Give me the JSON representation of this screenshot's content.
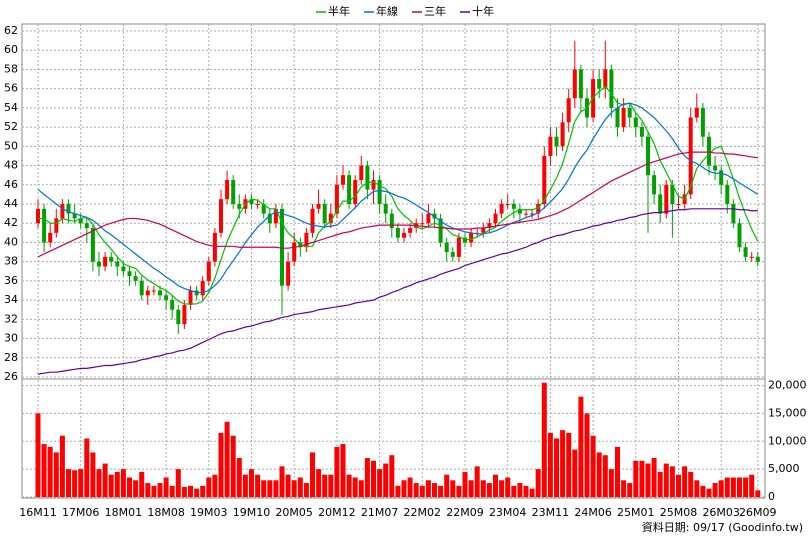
{
  "chart_data": [
    {
      "type": "candlestick",
      "categories": [
        "16M11",
        null,
        null,
        null,
        null,
        null,
        null,
        "17M06",
        null,
        null,
        null,
        null,
        null,
        null,
        "18M01",
        null,
        null,
        null,
        null,
        null,
        null,
        "18M08",
        null,
        null,
        null,
        null,
        null,
        null,
        "19M03",
        null,
        null,
        null,
        null,
        null,
        null,
        "19M10",
        null,
        null,
        null,
        null,
        null,
        null,
        "20M05",
        null,
        null,
        null,
        null,
        null,
        null,
        "20M12",
        null,
        null,
        null,
        null,
        null,
        null,
        "21M07",
        null,
        null,
        null,
        null,
        null,
        null,
        "22M02",
        null,
        null,
        null,
        null,
        null,
        null,
        "22M09",
        null,
        null,
        null,
        null,
        null,
        null,
        "23M04",
        null,
        null,
        null,
        null,
        null,
        null,
        "23M11",
        null,
        null,
        null,
        null,
        null,
        null,
        "24M06",
        null,
        null,
        null,
        null,
        null,
        null,
        "25M01",
        null,
        null,
        null,
        null,
        null,
        null,
        "25M08",
        null,
        null,
        null,
        null,
        null,
        null,
        "26M03",
        null,
        null,
        null,
        null,
        null,
        "26M09"
      ],
      "open": [
        42,
        43.5,
        40,
        41,
        42.5,
        44,
        43,
        42.5,
        42,
        41.5,
        38,
        37.5,
        38.5,
        38,
        37.5,
        37,
        36.5,
        36,
        34.5,
        35,
        35,
        34.5,
        34,
        33,
        31.5,
        33.5,
        35,
        34.5,
        36,
        38,
        41,
        44.5,
        46.5,
        44,
        43.5,
        44.5,
        44,
        44,
        43,
        42,
        43.5,
        35.5,
        38,
        40,
        39.5,
        41,
        43.5,
        44,
        42,
        43,
        46,
        47,
        44,
        46.5,
        48,
        45.5,
        46.5,
        44,
        43,
        41.5,
        40.5,
        41,
        41.5,
        42,
        42,
        43,
        42.5,
        40,
        39,
        38.5,
        40.5,
        40,
        41,
        41,
        41.5,
        42,
        43,
        44,
        44,
        43.5,
        43,
        43,
        43,
        44,
        49,
        51,
        50,
        52.5,
        55,
        58,
        55,
        53,
        57,
        56,
        58,
        54,
        52,
        54,
        53,
        52,
        51,
        47,
        45,
        43,
        46,
        44,
        44,
        45,
        53,
        54,
        51,
        48,
        47.5,
        46,
        44,
        42,
        39.5,
        38.5,
        38.5
      ],
      "high": [
        44.5,
        44,
        42,
        43.5,
        44.5,
        44.5,
        44,
        43,
        42.5,
        42,
        39,
        39,
        39,
        38.5,
        38,
        37.5,
        37,
        36.5,
        35.5,
        35.5,
        35.5,
        35,
        34.5,
        33.5,
        34,
        35.5,
        35.5,
        36.5,
        38.5,
        41.5,
        45.5,
        47.5,
        47,
        45,
        45,
        45,
        44.5,
        44.5,
        43.5,
        44,
        44,
        39,
        41,
        40.5,
        41.5,
        44,
        45.5,
        44.5,
        44,
        47,
        48,
        47.5,
        47,
        49,
        48.5,
        47.5,
        47,
        45,
        43.5,
        42,
        41.5,
        42,
        42.5,
        43,
        44,
        43.5,
        43,
        40.5,
        39.5,
        41,
        41,
        41.5,
        41.5,
        42,
        42.5,
        43.5,
        44.5,
        45,
        44.5,
        44,
        43.5,
        43.5,
        44.5,
        50,
        52,
        52,
        53.5,
        56,
        61,
        58.5,
        56,
        58,
        58,
        61,
        58.5,
        55,
        55,
        54.5,
        53.5,
        52.5,
        51.5,
        47.5,
        46,
        46.5,
        46.5,
        45,
        46,
        54,
        55.5,
        54.5,
        51.5,
        49,
        48,
        46.5,
        44.5,
        42.5,
        40,
        39,
        39
      ],
      "low": [
        41.5,
        39,
        39.5,
        40.5,
        42,
        42,
        42,
        41.5,
        40,
        37,
        36.5,
        37,
        37.5,
        36.5,
        36.5,
        35.5,
        35.5,
        34,
        33.5,
        34.5,
        34,
        33,
        32,
        30.5,
        31,
        33,
        34,
        34,
        35.5,
        37.5,
        40.5,
        44,
        43.5,
        42.5,
        43,
        43.5,
        43.5,
        42.5,
        41,
        41.5,
        32.5,
        35,
        37.5,
        38.5,
        39,
        40.5,
        43,
        41.5,
        41.5,
        42.5,
        45.5,
        43.5,
        43.5,
        46,
        44.5,
        44,
        43,
        42,
        40.5,
        40,
        40,
        40.5,
        41,
        41.5,
        41.5,
        41.5,
        39.5,
        38,
        38,
        38,
        39.5,
        39.5,
        40.5,
        40.5,
        41,
        41.5,
        42.5,
        43.5,
        42.5,
        42,
        42.5,
        42.5,
        42.5,
        43.5,
        48,
        49,
        49.5,
        51.5,
        54,
        53.5,
        52,
        52.5,
        55,
        55,
        53,
        51,
        51.5,
        52,
        51,
        50,
        41,
        44,
        42,
        42.5,
        40.5,
        43.5,
        43.5,
        44.5,
        52.5,
        50,
        47,
        46.5,
        45,
        43,
        41.5,
        39,
        38,
        38,
        37.5
      ],
      "close": [
        43.5,
        40,
        41,
        42.5,
        44,
        43,
        42.5,
        42,
        41.5,
        38,
        37.5,
        38.5,
        38,
        37.5,
        37,
        36.5,
        36,
        34.5,
        35,
        35,
        34.5,
        34,
        33,
        31.5,
        33.5,
        35,
        34.5,
        36,
        38,
        41,
        44.5,
        46.5,
        44,
        43.5,
        44.5,
        44,
        44,
        43,
        42,
        43.5,
        35.5,
        38,
        40,
        39.5,
        41,
        43.5,
        44,
        42,
        43,
        46,
        47,
        44,
        46.5,
        48,
        45.5,
        46.5,
        44,
        43,
        41.5,
        40.5,
        41,
        41.5,
        42,
        42,
        43,
        42.5,
        40,
        39,
        38.5,
        40.5,
        40,
        41,
        41,
        41.5,
        42,
        43,
        44,
        44,
        43.5,
        43,
        43,
        43,
        44,
        49,
        51,
        50,
        52.5,
        55,
        58,
        55,
        53,
        57,
        56,
        58,
        54,
        52,
        54,
        53,
        52,
        51,
        47,
        45,
        43,
        46,
        44,
        44,
        45,
        53,
        54,
        51,
        48,
        47.5,
        46,
        44,
        42,
        39.5,
        38.5,
        38.5,
        38
      ],
      "up_color": "#ff0000",
      "down_color": "#00a000",
      "series": [
        {
          "name": "半年",
          "color": "#00c000",
          "values": [
            42.5,
            42.5,
            42,
            42,
            42.5,
            42.3,
            42.2,
            42.5,
            42.6,
            41.9,
            40.8,
            40,
            39.3,
            38.5,
            37.8,
            37.5,
            37.3,
            36.6,
            36.1,
            35.7,
            35.3,
            35,
            34.5,
            33.9,
            33.6,
            33.6,
            33.6,
            33.9,
            34.8,
            36.3,
            38.2,
            40.1,
            41.5,
            42.9,
            44,
            44.5,
            44.4,
            43.9,
            43.5,
            43.5,
            42,
            41,
            40.4,
            39.7,
            39.6,
            39.6,
            41,
            41.7,
            42.2,
            43.3,
            44.3,
            44.3,
            44.8,
            45.8,
            46.2,
            46.3,
            45.9,
            45.6,
            44.8,
            43.5,
            42.8,
            42.3,
            41.6,
            41.4,
            41.7,
            42,
            41.8,
            41.4,
            40.8,
            40.6,
            40.3,
            40.3,
            40.6,
            40.9,
            41.3,
            41.6,
            42.2,
            42.7,
            43.1,
            43.4,
            43.4,
            43.4,
            43.6,
            44.4,
            45.5,
            46.7,
            48.2,
            50.3,
            52.6,
            53.6,
            54,
            55.1,
            55.7,
            56.2,
            55.5,
            54.5,
            54.3,
            54.5,
            53.5,
            52.7,
            51.5,
            50.3,
            48.5,
            47.3,
            46,
            44.8,
            44.5,
            45.8,
            47.7,
            48.5,
            49.2,
            49.8,
            50,
            48.4,
            46.6,
            44.6,
            42.9,
            41.4,
            40.1
          ]
        },
        {
          "name": "年線",
          "color": "#0070e0",
          "values": [
            45.5,
            45,
            44.5,
            44,
            43.5,
            43.2,
            43,
            42.8,
            42.6,
            42.3,
            41.8,
            41.2,
            40.8,
            40.3,
            39.8,
            39.3,
            38.8,
            38.3,
            37.8,
            37.3,
            36.9,
            36.4,
            36,
            35.5,
            35.2,
            35,
            34.8,
            34.8,
            35,
            35.5,
            36.2,
            37.2,
            38.1,
            39,
            40,
            40.8,
            41.6,
            42.2,
            42.8,
            43.2,
            43,
            42.8,
            42.6,
            42.3,
            42,
            41.8,
            41.7,
            41.6,
            41.7,
            41.8,
            42.4,
            43,
            43.6,
            44.3,
            44.8,
            45.3,
            45.4,
            45.3,
            45.1,
            44.8,
            44.6,
            44.3,
            43.9,
            43.5,
            43.1,
            42.7,
            42.2,
            41.8,
            41.5,
            41.3,
            41.1,
            41,
            40.9,
            40.9,
            41,
            41.2,
            41.5,
            41.8,
            42.1,
            42.3,
            42.6,
            42.8,
            43.1,
            43.6,
            44.2,
            44.9,
            45.6,
            46.6,
            47.8,
            48.8,
            49.6,
            50.8,
            51.8,
            52.8,
            53.5,
            54,
            54.4,
            54.5,
            54.3,
            54,
            53.5,
            53,
            52.3,
            51.6,
            50.8,
            49.8,
            49,
            48.5,
            48.2,
            47.8,
            47.4,
            47.2,
            47.2,
            47,
            46.6,
            46.2,
            45.8,
            45.4,
            45
          ]
        },
        {
          "name": "三年",
          "color": "#d00050",
          "values": [
            38.5,
            38.8,
            39.1,
            39.4,
            39.7,
            40,
            40.3,
            40.6,
            40.9,
            41.2,
            41.5,
            41.8,
            42,
            42.2,
            42.4,
            42.5,
            42.5,
            42.4,
            42.3,
            42.1,
            41.9,
            41.6,
            41.3,
            41,
            40.7,
            40.4,
            40.1,
            39.9,
            39.7,
            39.6,
            39.6,
            39.6,
            39.6,
            39.5,
            39.5,
            39.5,
            39.5,
            39.5,
            39.5,
            39.5,
            39.4,
            39.4,
            39.5,
            39.6,
            39.8,
            40,
            40.2,
            40.4,
            40.6,
            40.8,
            41,
            41.1,
            41.3,
            41.5,
            41.6,
            41.7,
            41.8,
            41.8,
            41.8,
            41.8,
            41.8,
            41.8,
            41.7,
            41.7,
            41.6,
            41.6,
            41.5,
            41.5,
            41.4,
            41.4,
            41.4,
            41.4,
            41.5,
            41.5,
            41.6,
            41.7,
            41.8,
            41.9,
            42,
            42.1,
            42.2,
            42.3,
            42.4,
            42.6,
            42.8,
            43,
            43.3,
            43.6,
            44,
            44.4,
            44.8,
            45.2,
            45.6,
            46,
            46.4,
            46.7,
            47,
            47.3,
            47.6,
            47.9,
            48.2,
            48.4,
            48.6,
            48.8,
            49,
            49.2,
            49.3,
            49.4,
            49.4,
            49.4,
            49.4,
            49.3,
            49.3,
            49.2,
            49.2,
            49.1,
            49,
            48.9,
            48.8
          ]
        },
        {
          "name": "十年",
          "color": "#6000a0",
          "values": [
            26.3,
            26.4,
            26.5,
            26.5,
            26.6,
            26.7,
            26.8,
            26.9,
            26.9,
            27,
            27.1,
            27.2,
            27.2,
            27.3,
            27.4,
            27.5,
            27.6,
            27.8,
            27.9,
            28.1,
            28.2,
            28.4,
            28.5,
            28.7,
            28.8,
            29,
            29.3,
            29.6,
            29.9,
            30.2,
            30.5,
            30.7,
            30.8,
            31,
            31.2,
            31.3,
            31.5,
            31.7,
            31.8,
            32,
            32.2,
            32.3,
            32.5,
            32.6,
            32.7,
            32.8,
            33,
            33.1,
            33.2,
            33.3,
            33.4,
            33.5,
            33.7,
            33.8,
            33.9,
            34,
            34.3,
            34.5,
            34.8,
            35,
            35.3,
            35.5,
            35.8,
            36,
            36.2,
            36.4,
            36.7,
            36.9,
            37.1,
            37.3,
            37.6,
            37.8,
            38,
            38.2,
            38.4,
            38.6,
            38.8,
            38.9,
            39.1,
            39.3,
            39.5,
            39.8,
            40,
            40.3,
            40.5,
            40.7,
            40.8,
            41,
            41.2,
            41.3,
            41.5,
            41.7,
            41.8,
            42,
            42.1,
            42.3,
            42.4,
            42.6,
            42.7,
            42.9,
            43,
            43.1,
            43.1,
            43.2,
            43.3,
            43.4,
            43.4,
            43.5,
            43.5,
            43.5,
            43.5,
            43.5,
            43.5,
            43.5,
            43.5,
            43.4,
            43.4,
            43.3,
            43.3
          ]
        }
      ],
      "ylim": [
        26,
        62
      ],
      "yticks": [
        26,
        28,
        30,
        32,
        34,
        36,
        38,
        40,
        42,
        44,
        46,
        48,
        50,
        52,
        54,
        56,
        58,
        60,
        62
      ],
      "grid": true,
      "legend": "top"
    },
    {
      "type": "bar",
      "color": "#ff0000",
      "values": [
        15000,
        9500,
        9000,
        8000,
        11000,
        5000,
        4800,
        5000,
        10500,
        8000,
        5000,
        6000,
        4000,
        4500,
        5000,
        3500,
        3000,
        4500,
        2500,
        2000,
        2500,
        3500,
        2000,
        5000,
        1800,
        2000,
        1500,
        2000,
        3500,
        4000,
        11500,
        13500,
        11000,
        7000,
        4000,
        5000,
        4000,
        3000,
        3000,
        3000,
        5500,
        4000,
        3000,
        3500,
        2500,
        8000,
        5000,
        4000,
        4000,
        9000,
        9500,
        4000,
        3500,
        3000,
        7000,
        6500,
        5000,
        6000,
        7500,
        2000,
        3000,
        3500,
        2500,
        2000,
        3000,
        2500,
        2000,
        4000,
        3000,
        2000,
        4500,
        3000,
        5500,
        3000,
        2500,
        4000,
        3000,
        3500,
        2000,
        2500,
        2000,
        1500,
        5000,
        20500,
        11500,
        10500,
        12000,
        11500,
        8500,
        18000,
        15000,
        11000,
        8000,
        7500,
        5000,
        9000,
        3000,
        2500,
        6500,
        6500,
        6000,
        7000,
        4500,
        6000,
        5500,
        4000,
        5500,
        4500,
        3000,
        2000,
        1500,
        2500,
        3000,
        3500,
        3500,
        3500,
        3500,
        4000,
        1200
      ],
      "ylim": [
        0,
        21000
      ],
      "yticks": [
        0,
        {
          "value": 5000,
          "label": "5,000"
        },
        {
          "value": 10000,
          "label": "10,000"
        },
        {
          "value": 15000,
          "label": "15,000"
        },
        {
          "value": 20000,
          "label": "20,000"
        }
      ],
      "grid": true
    }
  ],
  "footer": "資料日期: 09/17  (Goodinfo.tw)"
}
